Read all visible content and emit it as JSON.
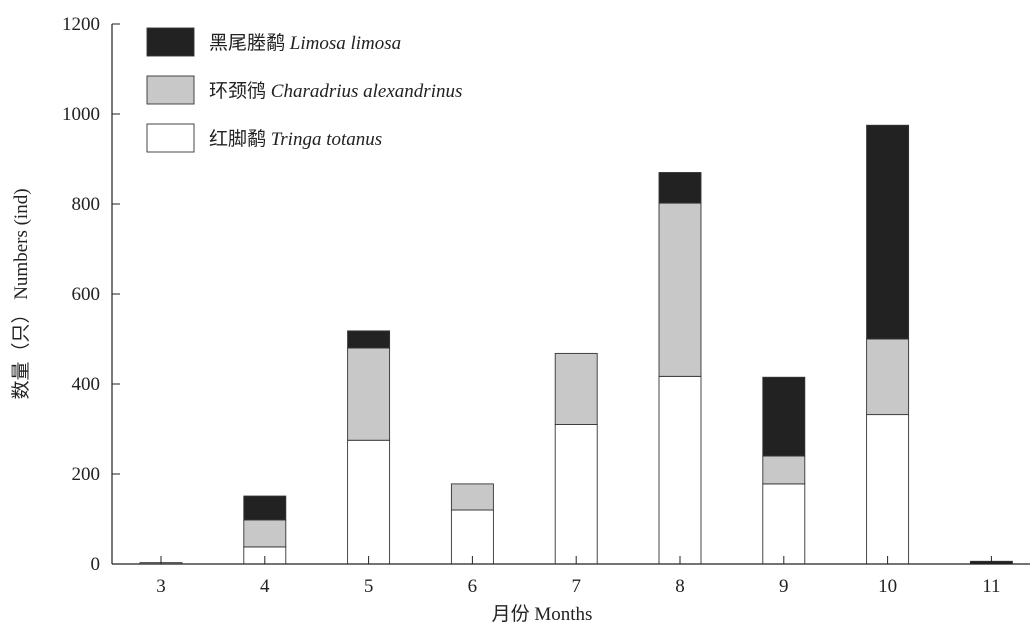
{
  "chart_data": {
    "type": "bar",
    "stacked": true,
    "categories": [
      "3",
      "4",
      "5",
      "6",
      "7",
      "8",
      "9",
      "10",
      "11"
    ],
    "series": [
      {
        "name": "红脚鹬 Tringa totanus",
        "name_cn": "红脚鹬",
        "name_latin": "Tringa totanus",
        "color": "#ffffff",
        "values": [
          0,
          38,
          275,
          120,
          310,
          417,
          178,
          332,
          0
        ]
      },
      {
        "name": "环颈鸻 Charadrius alexandrinus",
        "name_cn": "环颈鸻",
        "name_latin": "Charadrius alexandrinus",
        "color": "#c8c8c8",
        "values": [
          3,
          60,
          205,
          58,
          158,
          385,
          62,
          168,
          0
        ]
      },
      {
        "name": "黑尾塍鹬 Limosa limosa",
        "name_cn": "黑尾塍鹬",
        "name_latin": "Limosa limosa",
        "color": "#222222",
        "values": [
          0,
          53,
          38,
          0,
          0,
          68,
          175,
          475,
          6
        ]
      }
    ],
    "legend_order": [
      "黑尾塍鹬 Limosa limosa",
      "环颈鸻 Charadrius alexandrinus",
      "红脚鹬 Tringa totanus"
    ],
    "legend_position": "top-left",
    "xlabel": "月份 Months",
    "ylabel": "数量（只） Numbers (ind)",
    "ylim": [
      0,
      1200
    ],
    "yticks": [
      0,
      200,
      400,
      600,
      800,
      1000,
      1200
    ],
    "grid": false
  }
}
